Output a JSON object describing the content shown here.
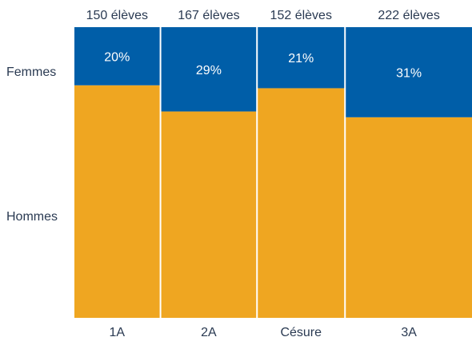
{
  "chart_data": {
    "type": "bar",
    "subtype": "stacked-100-marimekko",
    "categories": [
      "1A",
      "2A",
      "Césure",
      "3A"
    ],
    "top_labels": [
      "150 élèves",
      "167 élèves",
      "152 élèves",
      "222 élèves"
    ],
    "series": [
      {
        "name": "Femmes",
        "values": [
          20,
          29,
          21,
          31
        ],
        "value_labels": [
          "20%",
          "29%",
          "21%",
          "31%"
        ],
        "color": "#005ea8"
      },
      {
        "name": "Hommes",
        "values": [
          80,
          71,
          79,
          69
        ],
        "color": "#efa621"
      }
    ],
    "ylim": [
      0,
      100
    ],
    "grid": false,
    "legend": "left"
  }
}
